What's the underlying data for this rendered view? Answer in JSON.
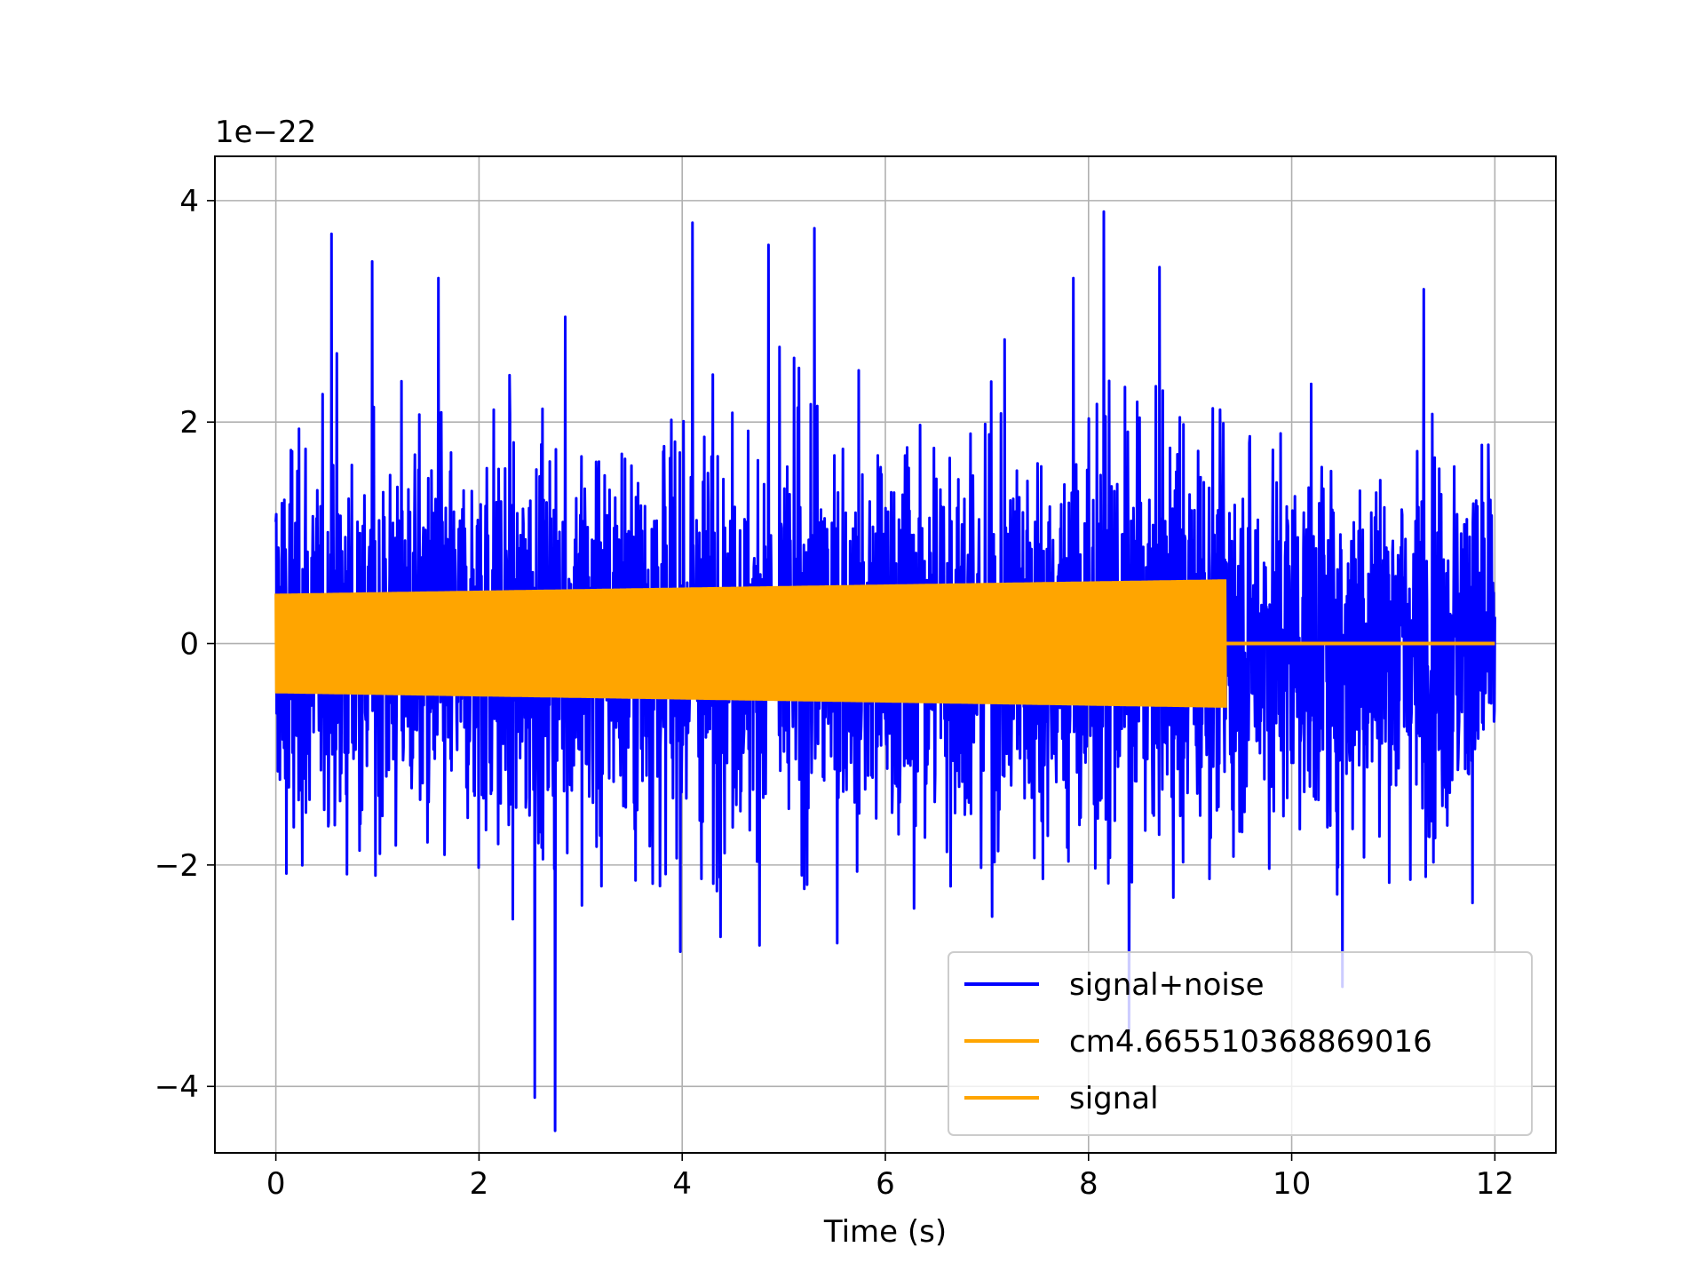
{
  "chart_data": {
    "type": "line",
    "xlabel": "Time (s)",
    "ylabel": "",
    "offset_text": "1e−22",
    "y_scale_factor": 1e-22,
    "xlim": [
      -0.6,
      12.6
    ],
    "ylim": [
      -4.6,
      4.4
    ],
    "grid": true,
    "legend_position": "lower-right",
    "x_ticks": [
      0,
      2,
      4,
      6,
      8,
      10,
      12
    ],
    "x_tick_labels": [
      "0",
      "2",
      "4",
      "6",
      "8",
      "10",
      "12"
    ],
    "y_ticks": [
      -4,
      -2,
      0,
      2,
      4
    ],
    "y_tick_labels": [
      "−4",
      "−2",
      "0",
      "2",
      "4"
    ],
    "series": [
      {
        "name": "signal+noise",
        "color": "#0000ff",
        "kind": "noise",
        "x_range": [
          0,
          12
        ],
        "envelope_abs_max": 4.4,
        "typical_abs": 1.5,
        "peaks": [
          {
            "x": 0.55,
            "y": 3.7
          },
          {
            "x": 0.95,
            "y": 3.45
          },
          {
            "x": 1.6,
            "y": 3.3
          },
          {
            "x": 2.55,
            "y": -4.1
          },
          {
            "x": 2.75,
            "y": -4.4
          },
          {
            "x": 2.85,
            "y": 2.95
          },
          {
            "x": 4.1,
            "y": 3.8
          },
          {
            "x": 4.85,
            "y": 3.6
          },
          {
            "x": 5.3,
            "y": 3.75
          },
          {
            "x": 7.85,
            "y": 3.3
          },
          {
            "x": 8.15,
            "y": 3.9
          },
          {
            "x": 8.4,
            "y": -3.5
          },
          {
            "x": 8.7,
            "y": 3.4
          },
          {
            "x": 10.5,
            "y": -3.1
          },
          {
            "x": 11.3,
            "y": 3.2
          }
        ]
      },
      {
        "name": "cm4.665510368869016",
        "color": "#ffa500",
        "kind": "chirp",
        "x_range": [
          0,
          9.35
        ],
        "amplitude_start": 0.45,
        "amplitude_end": 0.58
      },
      {
        "name": "signal",
        "color": "#ffa500",
        "kind": "flat",
        "x_range": [
          9.35,
          12
        ],
        "y": 0
      }
    ]
  }
}
